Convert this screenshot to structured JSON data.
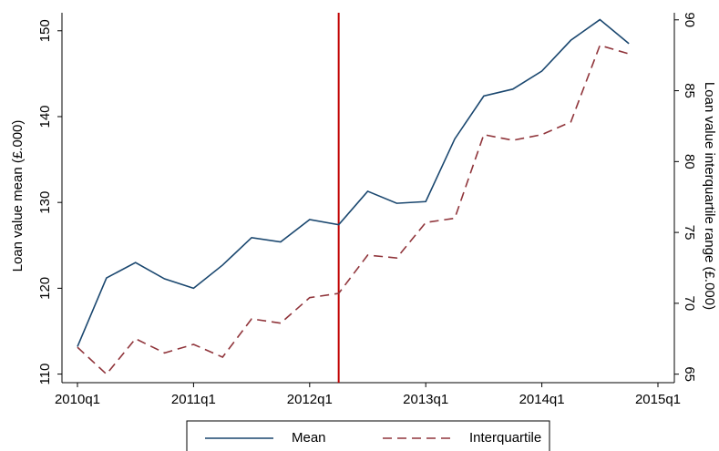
{
  "chart_data": {
    "type": "line",
    "categories": [
      "2010q1",
      null,
      null,
      null,
      "2011q1",
      null,
      null,
      null,
      "2012q1",
      null,
      null,
      null,
      "2013q1",
      null,
      null,
      null,
      "2014q1",
      null,
      null,
      null,
      "2015q1"
    ],
    "series": [
      {
        "name": "Mean",
        "color": "#1a476f",
        "axis": "y",
        "dash": false,
        "values": [
          113.2,
          121.2,
          123.0,
          121.1,
          120.0,
          122.7,
          125.9,
          125.4,
          128.0,
          127.4,
          131.3,
          129.9,
          130.1,
          137.4,
          142.4,
          143.2,
          145.3,
          148.9,
          151.3,
          148.5,
          null
        ]
      },
      {
        "name": "Interquartile",
        "color": "#90353b",
        "axis": "y2",
        "dash": true,
        "values": [
          66.9,
          65.0,
          67.5,
          66.5,
          67.1,
          66.2,
          68.9,
          68.6,
          70.4,
          70.7,
          73.4,
          73.2,
          75.7,
          76.0,
          81.9,
          81.5,
          81.9,
          82.8,
          88.2,
          87.6,
          null
        ]
      }
    ],
    "y_label": "Loan value mean (£.000)",
    "y2_label": "Loan value interquartile range (£.000)",
    "ylim": [
      109,
      152.1
    ],
    "yticks": [
      110,
      120,
      130,
      140,
      150
    ],
    "y2lim": [
      64.4,
      90.5
    ],
    "y2ticks": [
      65,
      70,
      75,
      80,
      85,
      90
    ],
    "vline_category_index": 9,
    "vline_color": "#c10000",
    "legend": "bottom"
  }
}
